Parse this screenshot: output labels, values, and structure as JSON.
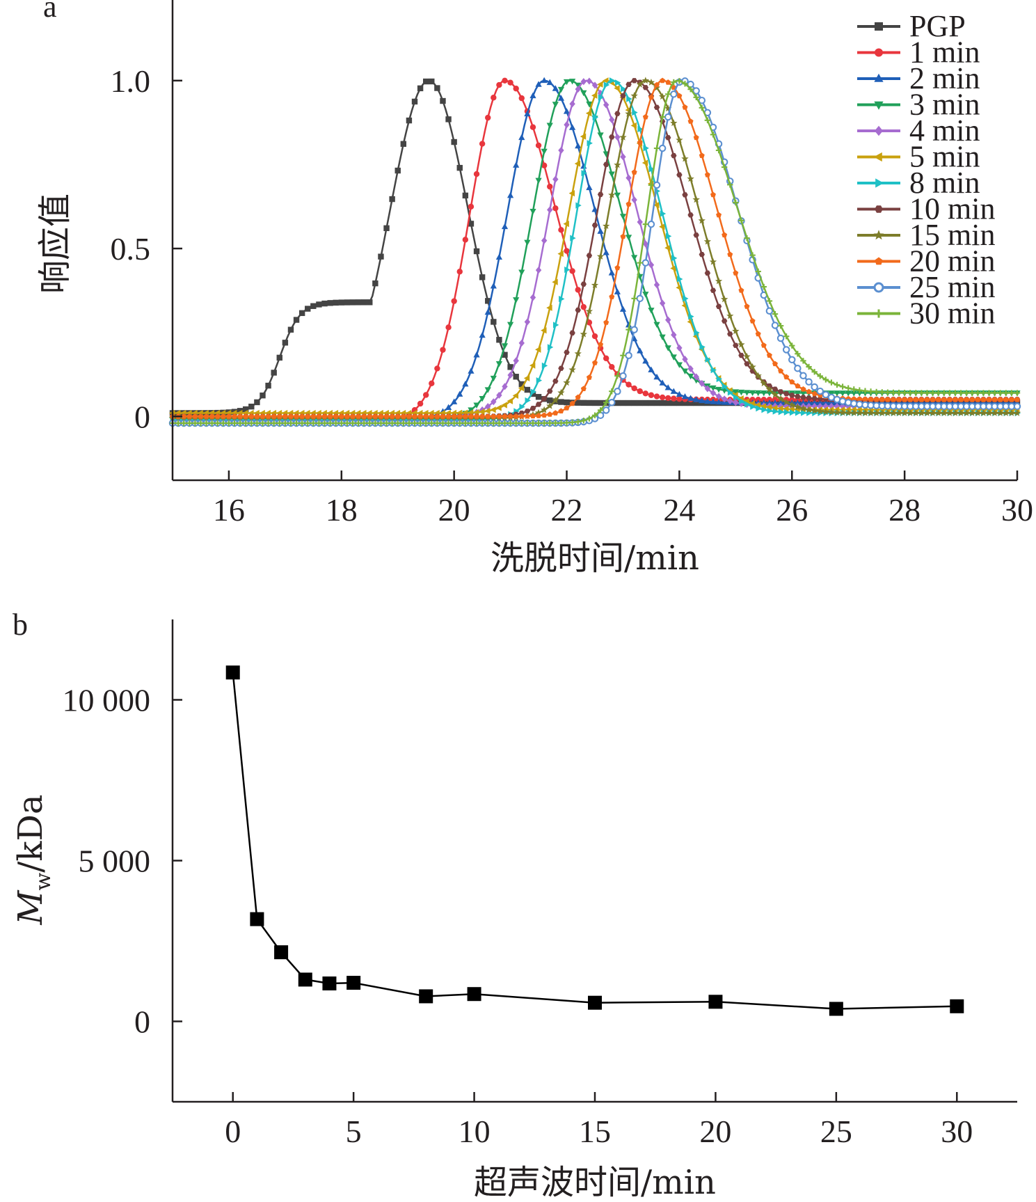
{
  "chart_data": [
    {
      "type": "line",
      "panel_label": "a",
      "xlabel": "洗脱时间/min",
      "ylabel": "响应值",
      "xlim": [
        15,
        30
      ],
      "ylim": [
        -0.19,
        1.24
      ],
      "xticks": [
        16,
        18,
        20,
        22,
        24,
        26,
        28,
        30
      ],
      "yticks": [
        0,
        0.5,
        1.0
      ],
      "ytick_labels": [
        "0",
        "0.5",
        "1.0"
      ],
      "grid": false,
      "legend_position": "top-right",
      "series": [
        {
          "name": "PGP",
          "color": "#444444",
          "marker": "square",
          "peak": 19.55,
          "width_left": 1.05,
          "width_right": 1.05,
          "shoulder": true,
          "baseline": 0.01,
          "tail": 0.04
        },
        {
          "name": "1 min",
          "color": "#e8363d",
          "marker": "circle",
          "peak": 20.9,
          "width_left": 0.95,
          "width_right": 1.35,
          "baseline": -0.02,
          "tail": 0.05
        },
        {
          "name": "2 min",
          "color": "#1f5fb8",
          "marker": "triangle-up",
          "peak": 21.6,
          "width_left": 1.0,
          "width_right": 1.35,
          "baseline": -0.01,
          "tail": 0.04
        },
        {
          "name": "3 min",
          "color": "#20a05a",
          "marker": "triangle-down",
          "peak": 22.05,
          "width_left": 1.0,
          "width_right": 1.35,
          "baseline": -0.01,
          "tail": 0.07
        },
        {
          "name": "4 min",
          "color": "#a66cd0",
          "marker": "diamond",
          "peak": 22.35,
          "width_left": 1.0,
          "width_right": 1.35,
          "baseline": 0.0,
          "tail": 0.03
        },
        {
          "name": "5 min",
          "color": "#c9a10e",
          "marker": "triangle-left",
          "peak": 22.7,
          "width_left": 1.0,
          "width_right": 1.4,
          "baseline": 0.01,
          "tail": 0.02
        },
        {
          "name": "8 min",
          "color": "#1fc0c6",
          "marker": "triangle-right",
          "peak": 22.8,
          "width_left": 0.95,
          "width_right": 1.35,
          "baseline": -0.01,
          "tail": 0.01
        },
        {
          "name": "10 min",
          "color": "#7a4040",
          "marker": "hexagon",
          "peak": 23.2,
          "width_left": 1.0,
          "width_right": 1.45,
          "baseline": 0.0,
          "tail": 0.05
        },
        {
          "name": "15 min",
          "color": "#7d7d2a",
          "marker": "star",
          "peak": 23.4,
          "width_left": 1.0,
          "width_right": 1.45,
          "baseline": -0.005,
          "tail": 0.01
        },
        {
          "name": "20 min",
          "color": "#f26a1b",
          "marker": "pentagon",
          "peak": 23.7,
          "width_left": 0.95,
          "width_right": 1.45,
          "baseline": 0.0,
          "tail": 0.05
        },
        {
          "name": "25 min",
          "color": "#5b8fd0",
          "marker": "circle-open",
          "peak": 24.05,
          "width_left": 0.8,
          "width_right": 1.5,
          "baseline": -0.02,
          "tail": 0.03
        },
        {
          "name": "30 min",
          "color": "#7bb43a",
          "marker": "plus",
          "peak": 23.95,
          "width_left": 0.8,
          "width_right": 1.6,
          "baseline": -0.02,
          "tail": 0.07
        }
      ]
    },
    {
      "type": "line",
      "panel_label": "b",
      "xlabel": "超声波时间/min",
      "ylabel_main": "M",
      "ylabel_sub": "w",
      "ylabel_rest": "/kDa",
      "xlim": [
        -2.5,
        32.5
      ],
      "ylim": [
        -2500,
        12500
      ],
      "xticks": [
        0,
        5,
        10,
        15,
        20,
        25,
        30
      ],
      "yticks": [
        0,
        5000,
        10000
      ],
      "ytick_labels": [
        "0",
        "5 000",
        "10 000"
      ],
      "grid": false,
      "marker": "square",
      "color": "#000000",
      "x": [
        0,
        1,
        2,
        3,
        4,
        5,
        8,
        10,
        15,
        20,
        25,
        30
      ],
      "y": [
        10850,
        3180,
        2150,
        1300,
        1180,
        1200,
        780,
        850,
        580,
        610,
        390,
        470
      ]
    }
  ]
}
